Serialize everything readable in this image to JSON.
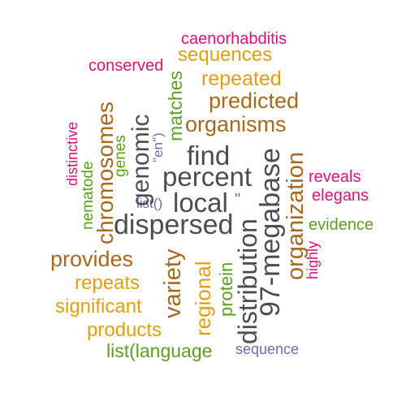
{
  "colors": {
    "gray": "#4d4d4d",
    "brown": "#a6681d",
    "gold": "#e09e10",
    "green": "#5b9e1e",
    "magenta": "#d9127a",
    "purple": "#6f6aae"
  },
  "words": {
    "caenorhabditis": "caenorhabditis",
    "sequences": "sequences",
    "conserved": "conserved",
    "repeated": "repeated",
    "predicted": "predicted",
    "organisms": "organisms",
    "find": "find",
    "percent": "percent",
    "local": "local",
    "dispersed": "dispersed",
    "distinctive": "distinctive",
    "nematode": "nematode",
    "genes": "genes",
    "chromosomes": "chromosomes",
    "genomic": "genomic",
    "matches": "matches",
    "en": "\"en\")",
    "list_empty": "list()",
    "quote": "\"",
    "reveals": "reveals",
    "elegans": "elegans",
    "evidence": "evidence",
    "highly": "highly",
    "organization": "organization",
    "megabase": "97-megabase",
    "distribution": "distribution",
    "provides": "provides",
    "variety": "variety",
    "regional": "regional",
    "protein": "protein",
    "repeats": "repeats",
    "significant": "significant",
    "products": "products",
    "list_language": "list(language",
    "sequence": "sequence"
  }
}
